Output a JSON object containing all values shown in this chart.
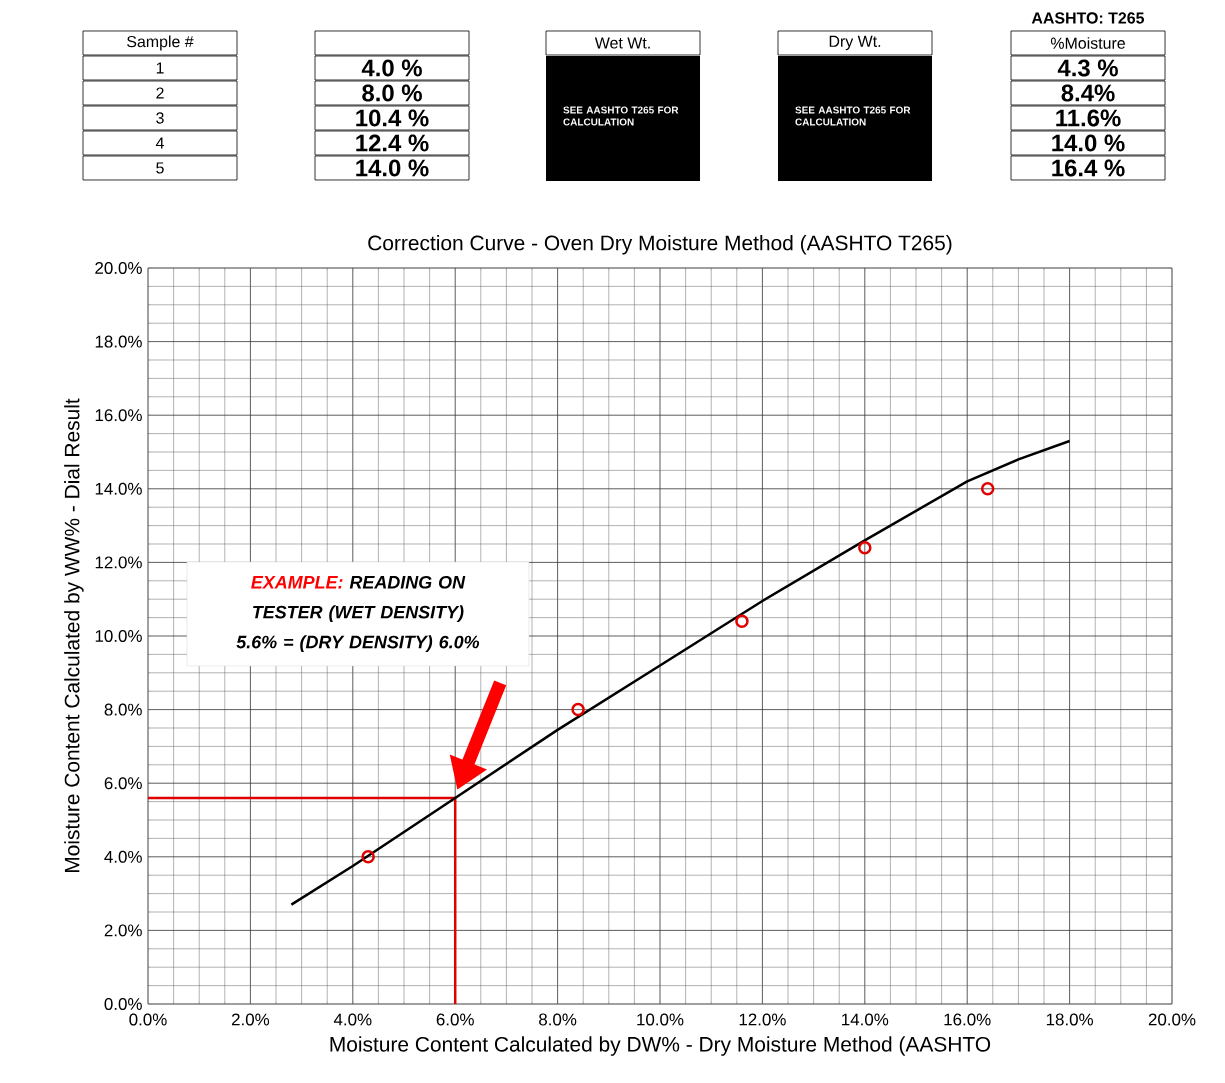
{
  "chart_data": {
    "type": "scatter",
    "title": "Correction Curve - Oven Dry Moisture Method (AASHTO T265)",
    "xlabel": "Moisture Content Calculated by DW% - Dry Moisture Method (AASHTO",
    "ylabel": "Moisture Content Calculated by WW% - Dial Result",
    "series": [
      {
        "type": "line",
        "color": "#000000",
        "marker": "none",
        "x": [
          2.8,
          4,
          6,
          8,
          10,
          12,
          14,
          16,
          17,
          18
        ],
        "values": [
          2.7,
          3.75,
          5.6,
          7.45,
          9.2,
          10.95,
          12.6,
          14.2,
          14.8,
          15.3
        ]
      },
      {
        "color": "#e00000",
        "marker": "circle",
        "x": [
          4.3,
          8.4,
          11.6,
          14.0,
          16.4
        ],
        "values": [
          4.0,
          8.0,
          10.4,
          12.4,
          14.0
        ]
      }
    ],
    "xlim": [
      0,
      20
    ],
    "ylim": [
      0,
      20
    ],
    "xticks": [
      {
        "value": 0,
        "label": "0.0%"
      },
      {
        "value": 2,
        "label": "2.0%"
      },
      {
        "value": 4,
        "label": "4.0%"
      },
      {
        "value": 6,
        "label": "6.0%"
      },
      {
        "value": 8,
        "label": "8.0%"
      },
      {
        "value": 10,
        "label": "10.0%"
      },
      {
        "value": 12,
        "label": "12.0%"
      },
      {
        "value": 14,
        "label": "14.0%"
      },
      {
        "value": 16,
        "label": "16.0%"
      },
      {
        "value": 18,
        "label": "18.0%"
      },
      {
        "value": 20,
        "label": "20.0%"
      }
    ],
    "yticks": [
      {
        "value": 0,
        "label": "0.0%"
      },
      {
        "value": 2,
        "label": "2.0%"
      },
      {
        "value": 4,
        "label": "4.0%"
      },
      {
        "value": 6,
        "label": "6.0%"
      },
      {
        "value": 8,
        "label": "8.0%"
      },
      {
        "value": 10,
        "label": "10.0%"
      },
      {
        "value": 12,
        "label": "12.0%"
      },
      {
        "value": 14,
        "label": "14.0%"
      },
      {
        "value": 16,
        "label": "16.0%"
      },
      {
        "value": 18,
        "label": "18.0%"
      },
      {
        "value": 20,
        "label": "20.0%"
      }
    ],
    "grid": true,
    "ref_lines": [
      {
        "axis": "x",
        "value": 6,
        "color": "#e00000"
      },
      {
        "axis": "y",
        "value": 5.6,
        "color": "#e00000"
      }
    ],
    "annotations": [
      "AASHTO: T265",
      "Sample #",
      "Wet Wt.",
      "Dry Wt.",
      "%Moisture",
      "1",
      "2",
      "3",
      "4",
      "5",
      "4.0 %",
      "8.0 %",
      "10.4 %",
      "12.4 %",
      "14.0 %",
      "SEE AASHTO T265 FOR CALCULATION",
      "SEE AASHTO T265 FOR CALCULATION",
      "4.3 %",
      "8.4%",
      "11.6%",
      "14.0 %",
      "16.4 %",
      "EXAMPLE:",
      "READING ON TESTER (WET DENSITY) 5.6% = (DRY DENSITY) 6.0%"
    ]
  }
}
